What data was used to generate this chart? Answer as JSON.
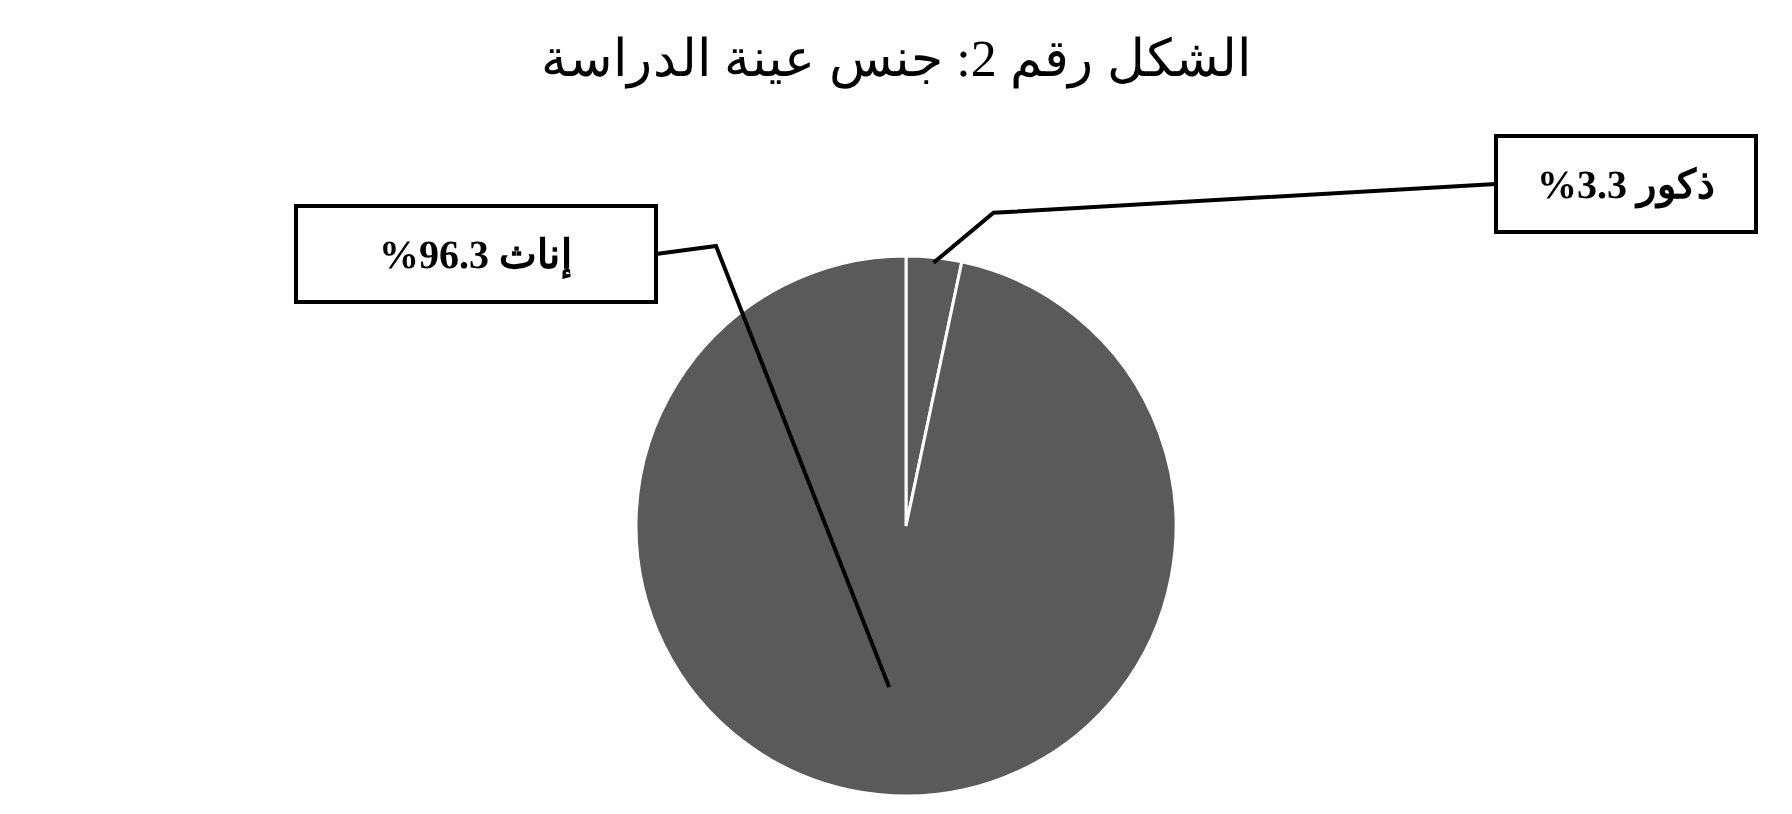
{
  "chart_data": {
    "type": "pie",
    "title": "الشكل رقم 2: جنس عينة الدراسة",
    "categories": [
      "ذكور",
      "إناث"
    ],
    "values": [
      3.3,
      96.3
    ],
    "value_labels": [
      "3.3%",
      "96.3%"
    ],
    "colors": [
      "#5a5a5a",
      "#5a5a5a"
    ]
  }
}
